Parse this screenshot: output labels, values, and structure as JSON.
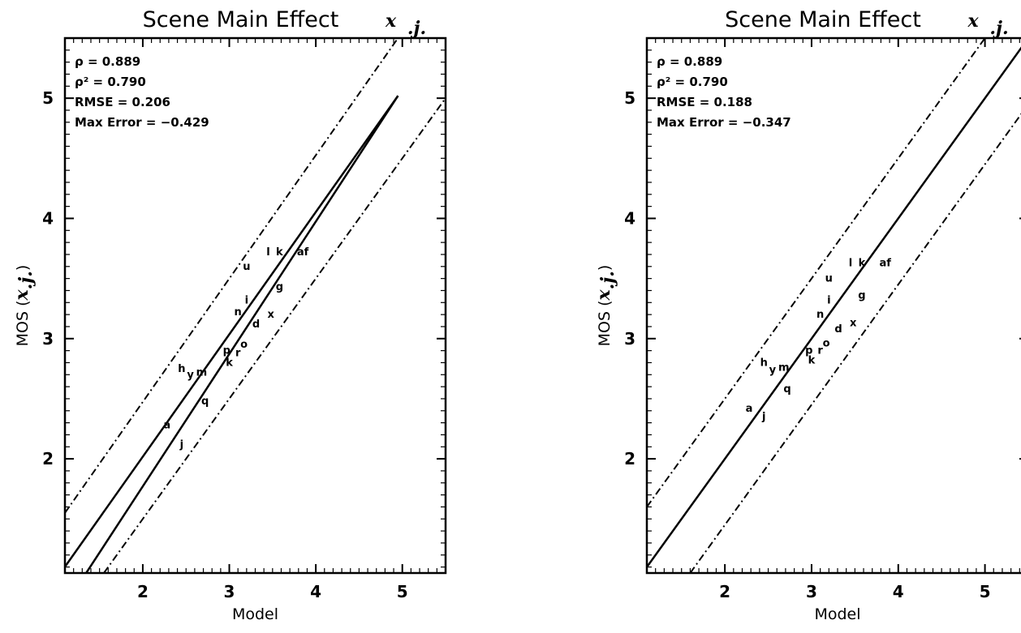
{
  "chart_data": [
    {
      "type": "scatter",
      "title": "Scene Main Effect",
      "title_symbol": "x",
      "title_subscript": ".j.",
      "xlabel": "Model",
      "ylabel": "MOS",
      "ylabel_symbol": "x",
      "ylabel_subscript": ".j.",
      "xlim": [
        1.1,
        5.5
      ],
      "ylim": [
        1.05,
        5.5
      ],
      "xticks": [
        "2",
        "3",
        "4",
        "5"
      ],
      "yticks": [
        "2",
        "3",
        "4",
        "5"
      ],
      "stats": [
        "ρ = 0.889",
        "ρ² = 0.790",
        "RMSE = 0.206",
        "Max Error = −0.429"
      ],
      "points": [
        {
          "label": "a",
          "x": 2.28,
          "y": 2.28
        },
        {
          "label": "j",
          "x": 2.45,
          "y": 2.12
        },
        {
          "label": "q",
          "x": 2.72,
          "y": 2.48
        },
        {
          "label": "h",
          "x": 2.45,
          "y": 2.75
        },
        {
          "label": "y",
          "x": 2.55,
          "y": 2.7
        },
        {
          "label": "m",
          "x": 2.68,
          "y": 2.72
        },
        {
          "label": "p",
          "x": 2.97,
          "y": 2.9
        },
        {
          "label": "k",
          "x": 3.0,
          "y": 2.8
        },
        {
          "label": "r",
          "x": 3.1,
          "y": 2.88
        },
        {
          "label": "o",
          "x": 3.17,
          "y": 2.95
        },
        {
          "label": "d",
          "x": 3.31,
          "y": 3.12
        },
        {
          "label": "x",
          "x": 3.48,
          "y": 3.2
        },
        {
          "label": "n",
          "x": 3.1,
          "y": 3.22
        },
        {
          "label": "i",
          "x": 3.2,
          "y": 3.32
        },
        {
          "label": "u",
          "x": 3.2,
          "y": 3.6
        },
        {
          "label": "g",
          "x": 3.58,
          "y": 3.43
        },
        {
          "label": "l",
          "x": 3.45,
          "y": 3.72
        },
        {
          "label": "k",
          "x": 3.58,
          "y": 3.72
        },
        {
          "label": "af",
          "x": 3.85,
          "y": 3.72
        }
      ],
      "lines": [
        {
          "role": "fit-upper",
          "x": [
            1.0,
            4.95
          ],
          "y": [
            1.0,
            5.02
          ]
        },
        {
          "role": "fit-lower",
          "x": [
            1.3,
            4.95
          ],
          "y": [
            1.0,
            5.02
          ]
        },
        {
          "role": "bound-upper",
          "x": [
            1.1,
            4.95
          ],
          "y": [
            1.55,
            5.5
          ]
        },
        {
          "role": "bound-lower",
          "x": [
            1.55,
            5.5
          ],
          "y": [
            1.05,
            5.0
          ]
        }
      ]
    },
    {
      "type": "scatter",
      "title": "Scene Main Effect",
      "title_symbol": "x",
      "title_subscript": ".j.",
      "xlabel": "Model",
      "ylabel": "MOS",
      "ylabel_symbol": "x",
      "ylabel_subscript": ".j.",
      "xlim": [
        1.1,
        5.5
      ],
      "ylim": [
        1.05,
        5.5
      ],
      "xticks": [
        "2",
        "3",
        "4",
        "5"
      ],
      "yticks": [
        "2",
        "3",
        "4",
        "5"
      ],
      "stats": [
        "ρ = 0.889",
        "ρ² = 0.790",
        "RMSE = 0.188",
        "Max Error = −0.347"
      ],
      "points": [
        {
          "label": "a",
          "x": 2.28,
          "y": 2.42
        },
        {
          "label": "j",
          "x": 2.45,
          "y": 2.35
        },
        {
          "label": "q",
          "x": 2.72,
          "y": 2.58
        },
        {
          "label": "h",
          "x": 2.45,
          "y": 2.8
        },
        {
          "label": "y",
          "x": 2.55,
          "y": 2.74
        },
        {
          "label": "m",
          "x": 2.68,
          "y": 2.76
        },
        {
          "label": "p",
          "x": 2.97,
          "y": 2.9
        },
        {
          "label": "k",
          "x": 3.0,
          "y": 2.82
        },
        {
          "label": "r",
          "x": 3.1,
          "y": 2.9
        },
        {
          "label": "o",
          "x": 3.17,
          "y": 2.96
        },
        {
          "label": "d",
          "x": 3.31,
          "y": 3.08
        },
        {
          "label": "x",
          "x": 3.48,
          "y": 3.13
        },
        {
          "label": "n",
          "x": 3.1,
          "y": 3.2
        },
        {
          "label": "i",
          "x": 3.2,
          "y": 3.32
        },
        {
          "label": "u",
          "x": 3.2,
          "y": 3.5
        },
        {
          "label": "g",
          "x": 3.58,
          "y": 3.36
        },
        {
          "label": "l",
          "x": 3.45,
          "y": 3.63
        },
        {
          "label": "k",
          "x": 3.58,
          "y": 3.63
        },
        {
          "label": "af",
          "x": 3.85,
          "y": 3.63
        }
      ],
      "lines": [
        {
          "role": "fit",
          "x": [
            1.1,
            5.5
          ],
          "y": [
            1.1,
            5.5
          ]
        },
        {
          "role": "bound-upper",
          "x": [
            1.1,
            5.0
          ],
          "y": [
            1.6,
            5.5
          ]
        },
        {
          "role": "bound-lower",
          "x": [
            1.6,
            5.5
          ],
          "y": [
            1.05,
            4.95
          ]
        }
      ]
    }
  ]
}
